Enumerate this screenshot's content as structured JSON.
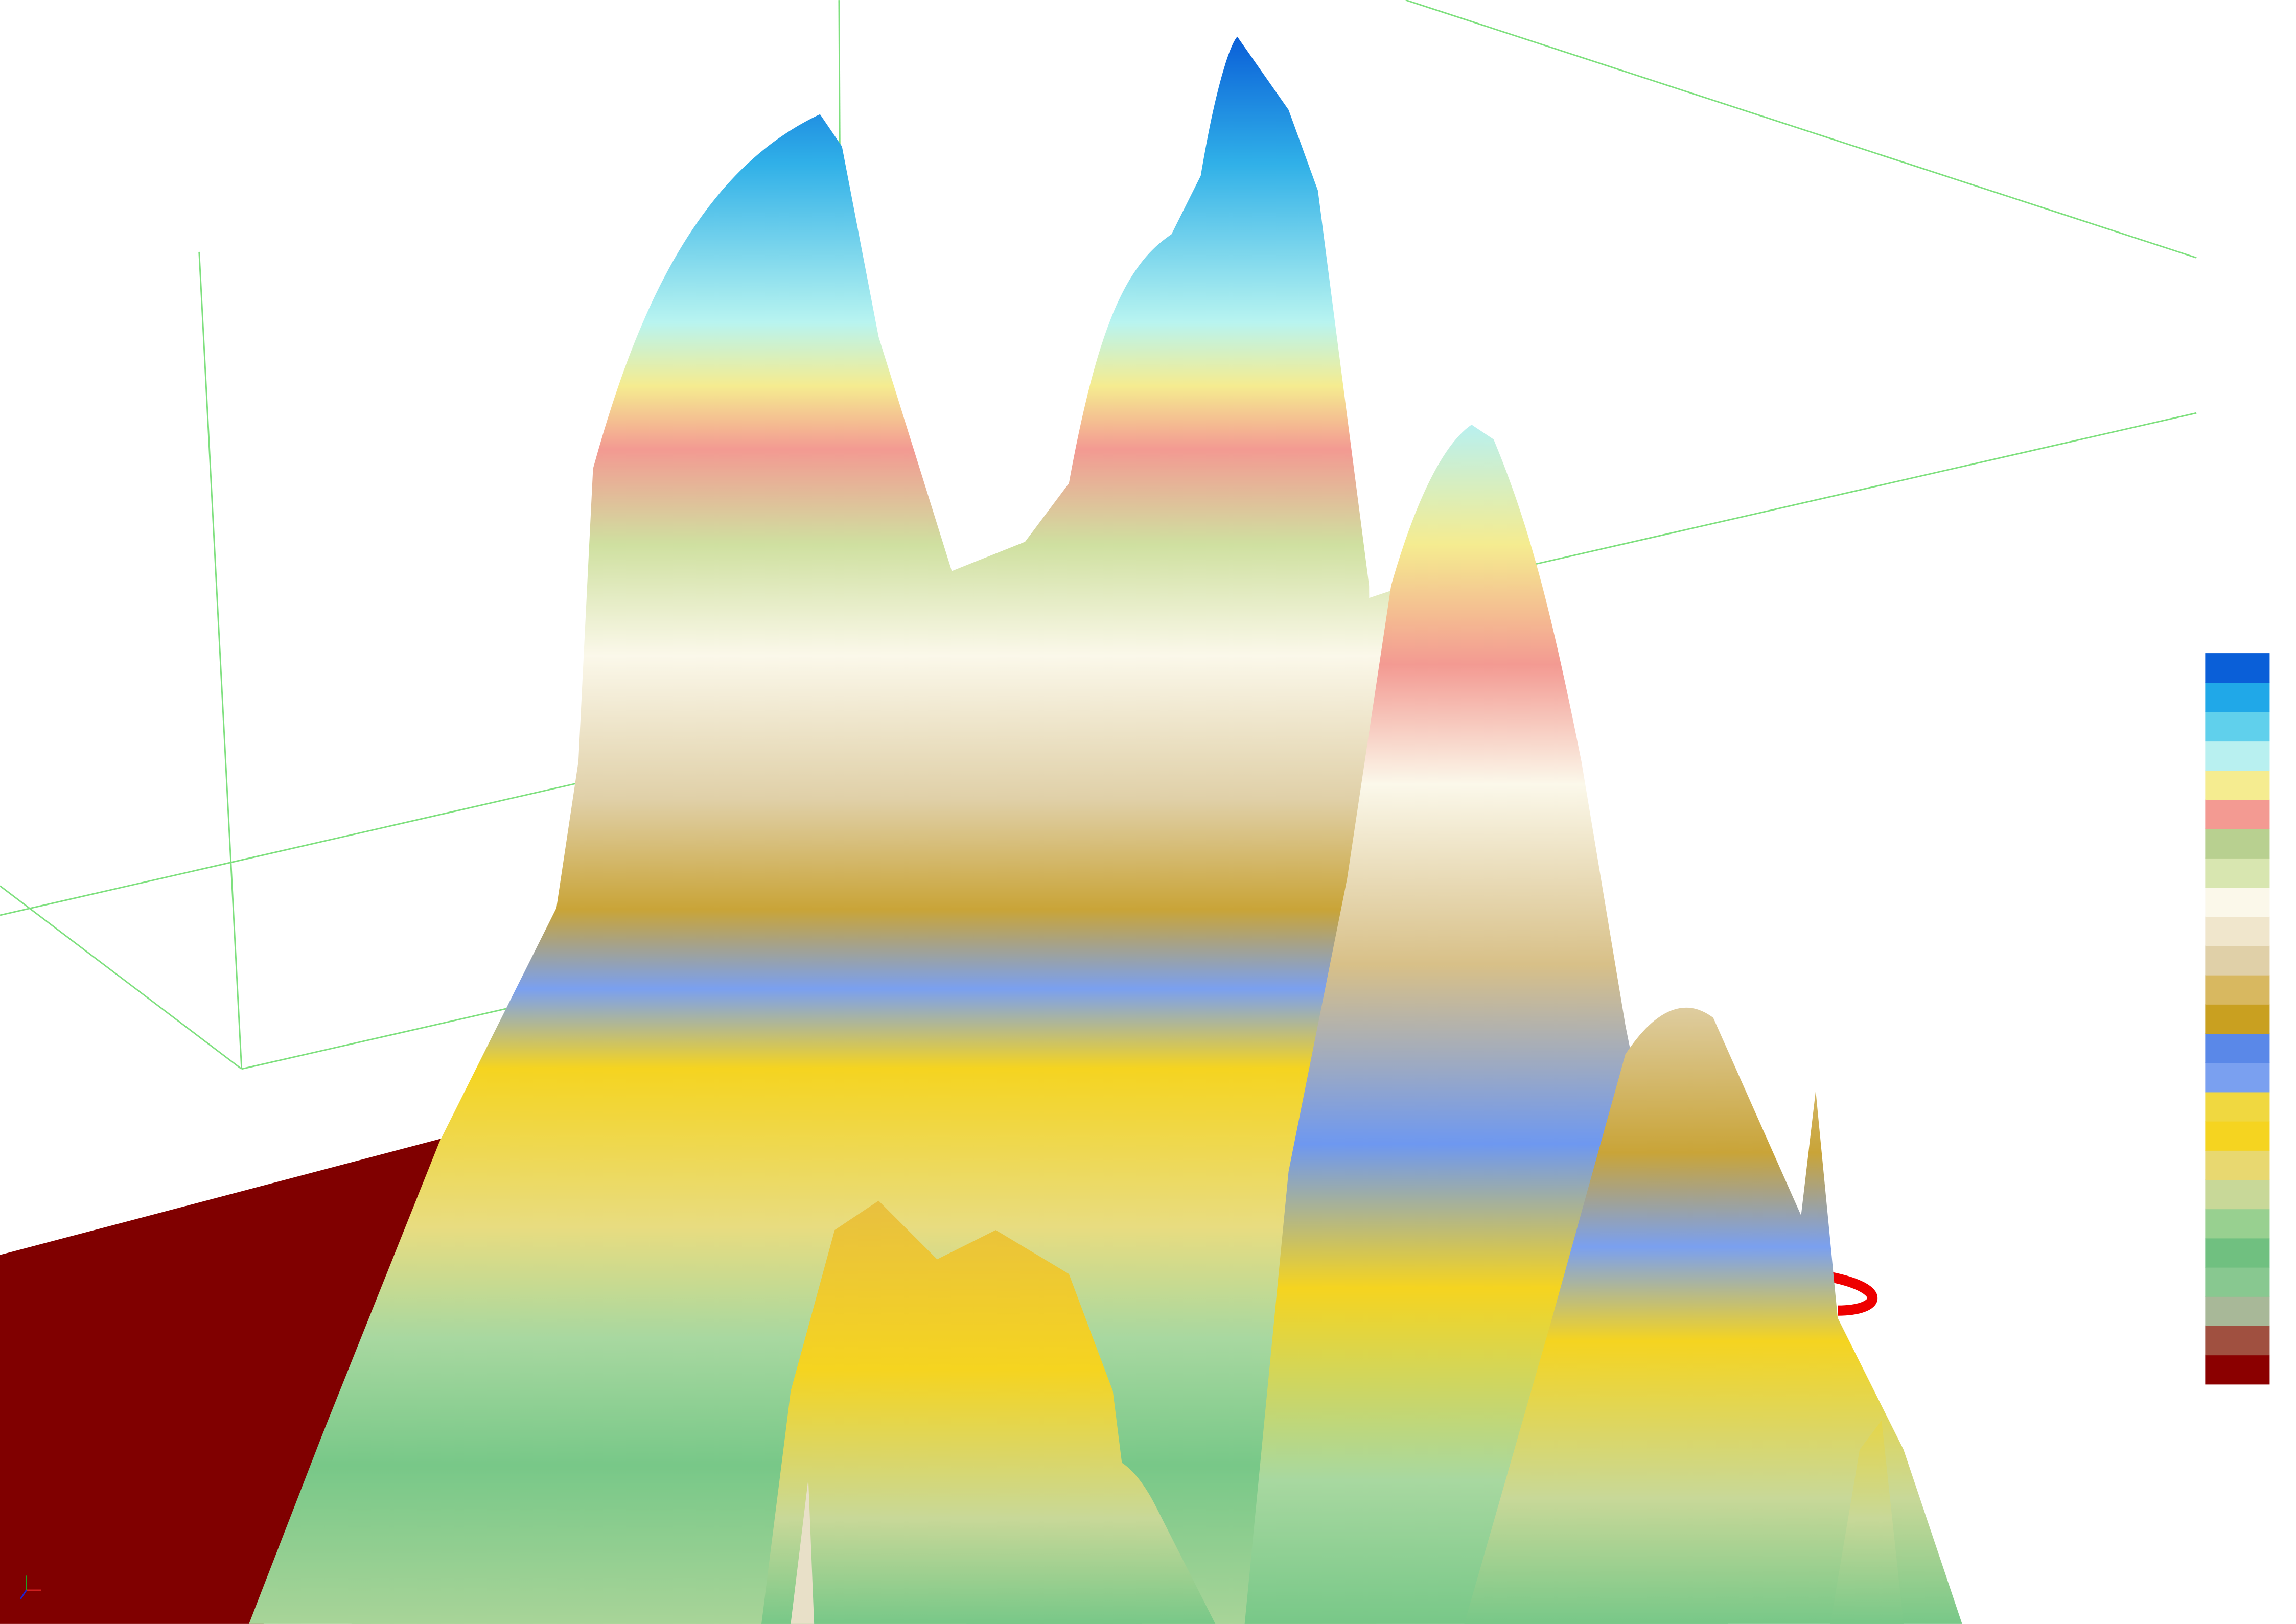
{
  "colorbar": {
    "colors": [
      "#8b0000",
      "#a05040",
      "#a8b898",
      "#88c890",
      "#70c080",
      "#98d090",
      "#c8d898",
      "#e8d870",
      "#f5d420",
      "#f0d840",
      "#7aa0f0",
      "#5a88e8",
      "#c9a020",
      "#d8b860",
      "#e0d0a8",
      "#f0e6cc",
      "#fbf8ea",
      "#d8e6b0",
      "#b8d090",
      "#f39a92",
      "#f5ec90",
      "#b8f0f0",
      "#60d0ec",
      "#20a8e8",
      "#0a5fd8"
    ]
  }
}
